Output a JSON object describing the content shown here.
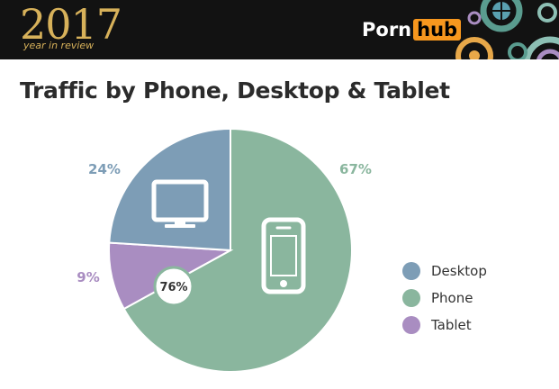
{
  "header": {
    "year": "2017",
    "subtitle": "year in review",
    "brand_left": "Porn",
    "brand_right": "hub"
  },
  "chart_data": {
    "type": "pie",
    "title": "Traffic by Phone, Desktop & Tablet",
    "slices": [
      {
        "name": "Phone",
        "value": 67,
        "label": "67%",
        "color": "#8ab69e"
      },
      {
        "name": "Tablet",
        "value": 9,
        "label": "9%",
        "color": "#a98dc1"
      },
      {
        "name": "Desktop",
        "value": 24,
        "label": "24%",
        "color": "#7d9db6"
      }
    ],
    "center_badge": "76%",
    "legend": [
      {
        "name": "Desktop",
        "color": "#7d9db6"
      },
      {
        "name": "Phone",
        "color": "#8ab69e"
      },
      {
        "name": "Tablet",
        "color": "#a98dc1"
      }
    ],
    "legend_position": "right",
    "icons": [
      "desktop-monitor-icon",
      "phone-icon"
    ]
  }
}
